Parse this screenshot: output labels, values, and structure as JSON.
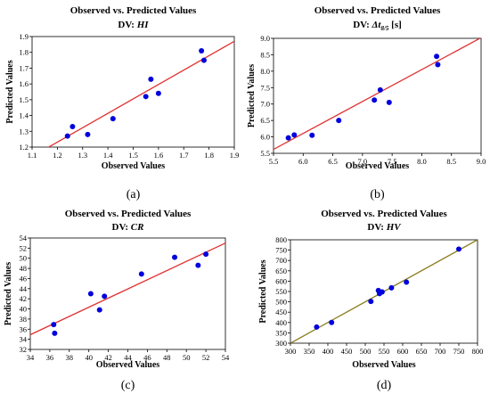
{
  "chart_data": [
    {
      "type": "scatter",
      "panel_label": "(a)",
      "title": "Observed vs. Predicted Values",
      "subtitle_prefix": "DV: ",
      "subtitle_var": "HI",
      "subtitle_suffix": "",
      "xlabel": "Observed Values",
      "ylabel": "Predicted Values",
      "xlim": [
        1.1,
        1.9
      ],
      "ylim": [
        1.2,
        1.9
      ],
      "xticks": [
        "1.1",
        "1.2",
        "1.3",
        "1.4",
        "1.5",
        "1.6",
        "1.7",
        "1.8",
        "1.9"
      ],
      "yticks": [
        "1.2",
        "1.3",
        "1.4",
        "1.5",
        "1.6",
        "1.7",
        "1.8",
        "1.9"
      ],
      "points": [
        [
          1.24,
          1.27
        ],
        [
          1.26,
          1.33
        ],
        [
          1.32,
          1.28
        ],
        [
          1.42,
          1.38
        ],
        [
          1.55,
          1.52
        ],
        [
          1.57,
          1.63
        ],
        [
          1.6,
          1.54
        ],
        [
          1.77,
          1.81
        ],
        [
          1.78,
          1.75
        ]
      ],
      "fit_line": [
        [
          1.1,
          1.14
        ],
        [
          1.9,
          1.87
        ]
      ],
      "point_color": "#0000dd",
      "line_color": "#e03030"
    },
    {
      "type": "scatter",
      "panel_label": "(b)",
      "title": "Observed vs. Predicted Values",
      "subtitle_prefix": "DV: ",
      "subtitle_var": "Δt",
      "subtitle_sub": "8/5",
      "subtitle_suffix": " [s]",
      "xlabel": "Observed Values",
      "ylabel": "Predicted Values",
      "xlim": [
        5.5,
        9.0
      ],
      "ylim": [
        5.5,
        9.0
      ],
      "xticks": [
        "5.5",
        "6.0",
        "6.5",
        "7.0",
        "7.5",
        "8.0",
        "8.5",
        "9.0"
      ],
      "yticks": [
        "5.5",
        "6.0",
        "6.5",
        "7.0",
        "7.5",
        "8.0",
        "8.5",
        "9.0"
      ],
      "points": [
        [
          5.75,
          5.97
        ],
        [
          5.85,
          6.06
        ],
        [
          6.15,
          6.05
        ],
        [
          6.6,
          6.5
        ],
        [
          7.2,
          7.12
        ],
        [
          7.3,
          7.43
        ],
        [
          7.45,
          7.05
        ],
        [
          8.25,
          8.45
        ],
        [
          8.27,
          8.2
        ]
      ],
      "fit_line": [
        [
          5.5,
          5.62
        ],
        [
          9.0,
          9.02
        ]
      ],
      "point_color": "#0000dd",
      "line_color": "#e03030"
    },
    {
      "type": "scatter",
      "panel_label": "(c)",
      "title": "Observed vs. Predicted Values",
      "subtitle_prefix": "DV: ",
      "subtitle_var": "CR",
      "subtitle_suffix": "",
      "xlabel": "Observed Values",
      "ylabel": "Predicted Values",
      "xlim": [
        34,
        54
      ],
      "ylim": [
        32,
        54
      ],
      "xticks": [
        "34",
        "36",
        "38",
        "40",
        "42",
        "44",
        "46",
        "48",
        "50",
        "52",
        "54"
      ],
      "yticks": [
        "32",
        "34",
        "36",
        "38",
        "40",
        "42",
        "44",
        "46",
        "48",
        "50",
        "52",
        "54"
      ],
      "points": [
        [
          36.4,
          36.9
        ],
        [
          36.5,
          35.2
        ],
        [
          40.2,
          43.0
        ],
        [
          41.1,
          39.8
        ],
        [
          41.6,
          42.5
        ],
        [
          45.4,
          46.9
        ],
        [
          48.8,
          50.2
        ],
        [
          51.2,
          48.6
        ],
        [
          52.0,
          50.8
        ]
      ],
      "fit_line": [
        [
          34,
          34.9
        ],
        [
          54,
          53.0
        ]
      ],
      "point_color": "#0000dd",
      "line_color": "#e03030"
    },
    {
      "type": "scatter",
      "panel_label": "(d)",
      "title": "Observed vs. Predicted Values",
      "subtitle_prefix": "DV: ",
      "subtitle_var": "HV",
      "subtitle_suffix": "",
      "xlabel": "Observed Values",
      "ylabel": "Predicted Values",
      "xlim": [
        300,
        800
      ],
      "ylim": [
        300,
        800
      ],
      "xticks": [
        "300",
        "350",
        "400",
        "450",
        "500",
        "550",
        "600",
        "650",
        "700",
        "750",
        "800"
      ],
      "yticks": [
        "300",
        "350",
        "400",
        "450",
        "500",
        "550",
        "600",
        "650",
        "700",
        "750",
        "800"
      ],
      "points": [
        [
          370,
          378
        ],
        [
          410,
          400
        ],
        [
          515,
          502
        ],
        [
          535,
          555
        ],
        [
          538,
          540
        ],
        [
          545,
          548
        ],
        [
          570,
          568
        ],
        [
          610,
          595
        ],
        [
          750,
          755
        ]
      ],
      "fit_line": [
        [
          300,
          300
        ],
        [
          800,
          800
        ]
      ],
      "point_color": "#0000dd",
      "line_color": "#8a7a1a"
    }
  ]
}
